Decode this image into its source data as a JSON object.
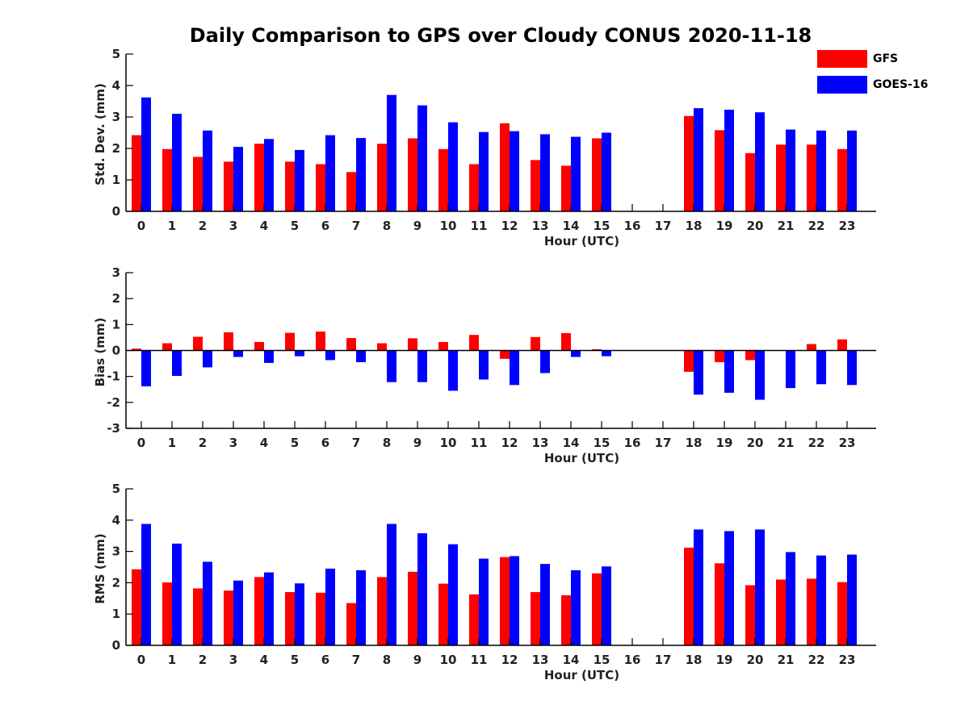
{
  "title": "Daily Comparison to GPS over Cloudy CONUS 2020-11-18",
  "legend": {
    "gfs": {
      "label": "GFS",
      "color": "#ff0000"
    },
    "goes": {
      "label": "GOES-16",
      "color": "#0000ff"
    }
  },
  "chart_data": [
    {
      "type": "bar",
      "categories": [
        "0",
        "1",
        "2",
        "3",
        "4",
        "5",
        "6",
        "7",
        "8",
        "9",
        "10",
        "11",
        "12",
        "13",
        "14",
        "15",
        "16",
        "17",
        "18",
        "19",
        "20",
        "21",
        "22",
        "23"
      ],
      "series": [
        {
          "name": "GFS",
          "color": "#ff0000",
          "values": [
            2.42,
            1.98,
            1.73,
            1.58,
            2.15,
            1.58,
            1.5,
            1.25,
            2.15,
            2.32,
            1.98,
            1.5,
            2.8,
            1.63,
            1.45,
            2.32,
            null,
            null,
            3.03,
            2.58,
            1.85,
            2.12,
            2.12,
            1.98
          ]
        },
        {
          "name": "GOES-16",
          "color": "#0000ff",
          "values": [
            3.62,
            3.1,
            2.57,
            2.05,
            2.3,
            1.95,
            2.42,
            2.33,
            3.7,
            3.37,
            2.83,
            2.52,
            2.55,
            2.45,
            2.37,
            2.5,
            null,
            null,
            3.28,
            3.23,
            3.15,
            2.6,
            2.57,
            2.57
          ]
        }
      ],
      "xlabel": "Hour (UTC)",
      "ylabel": "Std. Dev. (mm)",
      "ylim": [
        0,
        5
      ],
      "yticks": [
        "0",
        "1",
        "2",
        "3",
        "4",
        "5"
      ],
      "grid": false
    },
    {
      "type": "bar",
      "categories": [
        "0",
        "1",
        "2",
        "3",
        "4",
        "5",
        "6",
        "7",
        "8",
        "9",
        "10",
        "11",
        "12",
        "13",
        "14",
        "15",
        "16",
        "17",
        "18",
        "19",
        "20",
        "21",
        "22",
        "23"
      ],
      "series": [
        {
          "name": "GFS",
          "color": "#ff0000",
          "values": [
            0.07,
            0.28,
            0.53,
            0.7,
            0.33,
            0.68,
            0.73,
            0.48,
            0.28,
            0.47,
            0.33,
            0.6,
            -0.32,
            0.52,
            0.67,
            0.05,
            null,
            null,
            -0.82,
            -0.45,
            -0.37,
            0.0,
            0.25,
            0.43
          ]
        },
        {
          "name": "GOES-16",
          "color": "#0000ff",
          "values": [
            -1.38,
            -0.98,
            -0.65,
            -0.25,
            -0.48,
            -0.22,
            -0.37,
            -0.45,
            -1.22,
            -1.22,
            -1.55,
            -1.12,
            -1.33,
            -0.87,
            -0.25,
            -0.22,
            null,
            null,
            -1.7,
            -1.63,
            -1.9,
            -1.45,
            -1.3,
            -1.33
          ]
        }
      ],
      "xlabel": "Hour (UTC)",
      "ylabel": "Bias (mm)",
      "ylim": [
        -3,
        3
      ],
      "yticks": [
        "-3",
        "-2",
        "-1",
        "0",
        "1",
        "2",
        "3"
      ],
      "grid": false
    },
    {
      "type": "bar",
      "categories": [
        "0",
        "1",
        "2",
        "3",
        "4",
        "5",
        "6",
        "7",
        "8",
        "9",
        "10",
        "11",
        "12",
        "13",
        "14",
        "15",
        "16",
        "17",
        "18",
        "19",
        "20",
        "21",
        "22",
        "23"
      ],
      "series": [
        {
          "name": "GFS",
          "color": "#ff0000",
          "values": [
            2.43,
            2.01,
            1.82,
            1.75,
            2.18,
            1.7,
            1.68,
            1.35,
            2.18,
            2.35,
            1.97,
            1.63,
            2.82,
            1.7,
            1.6,
            2.3,
            null,
            null,
            3.12,
            2.62,
            1.92,
            2.1,
            2.13,
            2.02
          ]
        },
        {
          "name": "GOES-16",
          "color": "#0000ff",
          "values": [
            3.88,
            3.25,
            2.67,
            2.07,
            2.33,
            1.98,
            2.45,
            2.4,
            3.88,
            3.58,
            3.23,
            2.77,
            2.85,
            2.6,
            2.4,
            2.52,
            null,
            null,
            3.7,
            3.65,
            3.7,
            2.98,
            2.87,
            2.9
          ]
        }
      ],
      "xlabel": "Hour (UTC)",
      "ylabel": "RMS (mm)",
      "ylim": [
        0,
        5
      ],
      "yticks": [
        "0",
        "1",
        "2",
        "3",
        "4",
        "5"
      ],
      "grid": false
    }
  ]
}
